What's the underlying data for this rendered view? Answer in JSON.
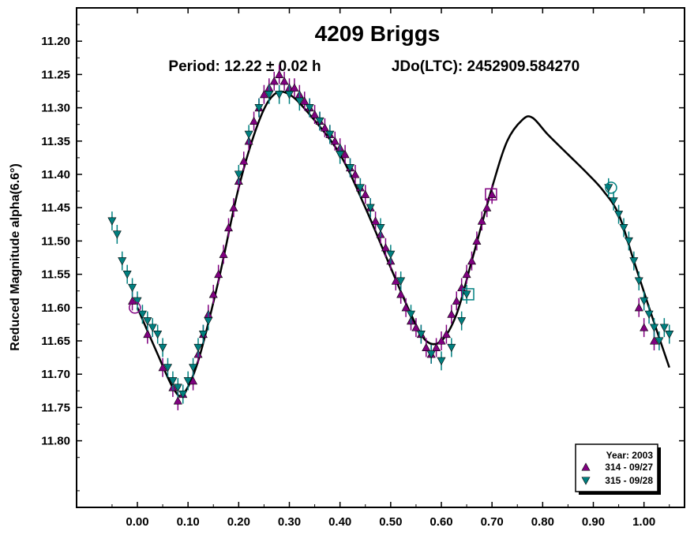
{
  "chart_data": {
    "type": "scatter",
    "title": "4209 Briggs",
    "subtitle_period": "Period: 12.22 ± 0.02 h",
    "subtitle_epoch": "JDo(LTC): 2452909.584270",
    "xlabel": "",
    "ylabel": "Reduced Magnitude alpha(6.6°)",
    "xlim": [
      -0.12,
      1.08
    ],
    "ylim": [
      11.15,
      11.9
    ],
    "y_inverted": true,
    "x_ticks": [
      0.0,
      0.1,
      0.2,
      0.3,
      0.4,
      0.5,
      0.6,
      0.7,
      0.8,
      0.9,
      1.0
    ],
    "x_tick_labels": [
      "0.00",
      "0.10",
      "0.20",
      "0.30",
      "0.40",
      "0.50",
      "0.60",
      "0.70",
      "0.80",
      "0.90",
      "1.00"
    ],
    "y_ticks": [
      11.2,
      11.25,
      11.3,
      11.35,
      11.4,
      11.45,
      11.5,
      11.55,
      11.6,
      11.65,
      11.7,
      11.75,
      11.8
    ],
    "y_tick_labels": [
      "11.20",
      "11.25",
      "11.30",
      "11.35",
      "11.40",
      "11.45",
      "11.50",
      "11.55",
      "11.60",
      "11.65",
      "11.70",
      "11.75",
      "11.80"
    ],
    "legend": {
      "title": "Year: 2003",
      "placement": "bottom-right",
      "entries": [
        {
          "label": "314 - 09/27",
          "marker": "triangle-up",
          "color": "#800080"
        },
        {
          "label": "315 - 09/28",
          "marker": "triangle-down",
          "color": "#008080"
        }
      ]
    },
    "fit_curve": {
      "color": "#000000",
      "x": [
        0.0,
        0.04,
        0.07,
        0.09,
        0.12,
        0.16,
        0.2,
        0.24,
        0.27,
        0.3,
        0.34,
        0.4,
        0.45,
        0.5,
        0.54,
        0.57,
        0.6,
        0.63,
        0.66,
        0.7,
        0.73,
        0.76,
        0.78,
        0.81,
        0.85,
        0.89,
        0.92,
        0.95,
        0.98,
        1.01,
        1.05
      ],
      "y": [
        11.6,
        11.67,
        11.72,
        11.73,
        11.68,
        11.56,
        11.42,
        11.32,
        11.28,
        11.28,
        11.31,
        11.37,
        11.45,
        11.54,
        11.61,
        11.65,
        11.65,
        11.61,
        11.53,
        11.42,
        11.35,
        11.318,
        11.315,
        11.34,
        11.37,
        11.4,
        11.425,
        11.46,
        11.53,
        11.6,
        11.69
      ]
    },
    "series": [
      {
        "name": "314 - 09/27",
        "marker": "triangle-up",
        "color": "#800080",
        "x": [
          -0.01,
          0.02,
          0.05,
          0.07,
          0.08,
          0.09,
          0.11,
          0.12,
          0.13,
          0.14,
          0.15,
          0.16,
          0.17,
          0.18,
          0.19,
          0.2,
          0.21,
          0.22,
          0.23,
          0.24,
          0.25,
          0.26,
          0.27,
          0.28,
          0.29,
          0.3,
          0.31,
          0.32,
          0.33,
          0.34,
          0.35,
          0.36,
          0.37,
          0.38,
          0.39,
          0.4,
          0.41,
          0.42,
          0.43,
          0.44,
          0.45,
          0.46,
          0.47,
          0.48,
          0.49,
          0.5,
          0.51,
          0.52,
          0.53,
          0.54,
          0.55,
          0.56,
          0.57,
          0.58,
          0.59,
          0.6,
          0.61,
          0.62,
          0.63,
          0.64,
          0.65,
          0.66,
          0.67,
          0.68,
          0.69,
          0.7,
          0.99,
          1.0,
          1.02
        ],
        "y": [
          11.59,
          11.64,
          11.69,
          11.72,
          11.74,
          11.73,
          11.71,
          11.67,
          11.64,
          11.61,
          11.58,
          11.55,
          11.52,
          11.48,
          11.45,
          11.41,
          11.38,
          11.35,
          11.32,
          11.3,
          11.28,
          11.27,
          11.26,
          11.25,
          11.26,
          11.27,
          11.27,
          11.28,
          11.29,
          11.3,
          11.31,
          11.32,
          11.33,
          11.34,
          11.35,
          11.36,
          11.37,
          11.39,
          11.4,
          11.42,
          11.43,
          11.45,
          11.47,
          11.49,
          11.51,
          11.53,
          11.56,
          11.58,
          11.6,
          11.62,
          11.63,
          11.64,
          11.66,
          11.67,
          11.66,
          11.65,
          11.64,
          11.61,
          11.59,
          11.57,
          11.55,
          11.53,
          11.5,
          11.47,
          11.45,
          11.43,
          11.6,
          11.63,
          11.65
        ]
      },
      {
        "name": "315 - 09/28",
        "marker": "triangle-down",
        "color": "#008080",
        "x": [
          -0.05,
          -0.04,
          -0.03,
          -0.02,
          -0.01,
          0.0,
          0.01,
          0.02,
          0.03,
          0.04,
          0.05,
          0.06,
          0.07,
          0.08,
          0.09,
          0.1,
          0.11,
          0.12,
          0.13,
          0.14,
          0.2,
          0.22,
          0.24,
          0.26,
          0.28,
          0.3,
          0.32,
          0.34,
          0.36,
          0.38,
          0.4,
          0.42,
          0.44,
          0.46,
          0.48,
          0.5,
          0.52,
          0.54,
          0.56,
          0.58,
          0.6,
          0.62,
          0.64,
          0.65,
          0.93,
          0.94,
          0.95,
          0.96,
          0.97,
          0.98,
          0.99,
          1.0,
          1.01,
          1.02,
          1.03,
          1.04,
          1.05
        ],
        "y": [
          11.47,
          11.49,
          11.53,
          11.55,
          11.57,
          11.59,
          11.61,
          11.62,
          11.63,
          11.64,
          11.66,
          11.69,
          11.71,
          11.72,
          11.73,
          11.71,
          11.69,
          11.66,
          11.64,
          11.62,
          11.4,
          11.34,
          11.3,
          11.28,
          11.28,
          11.28,
          11.29,
          11.3,
          11.32,
          11.34,
          11.37,
          11.39,
          11.42,
          11.45,
          11.48,
          11.52,
          11.56,
          11.61,
          11.64,
          11.67,
          11.68,
          11.66,
          11.62,
          11.58,
          11.42,
          11.44,
          11.46,
          11.48,
          11.5,
          11.53,
          11.56,
          11.59,
          11.61,
          11.63,
          11.65,
          11.63,
          11.64
        ]
      }
    ],
    "special_markers": [
      {
        "shape": "circle",
        "x": -0.005,
        "y": 11.6,
        "color": "#800080"
      },
      {
        "shape": "square",
        "x": 0.698,
        "y": 11.43,
        "color": "#800080"
      },
      {
        "shape": "square",
        "x": 0.653,
        "y": 11.58,
        "color": "#008080"
      },
      {
        "shape": "circle",
        "x": 0.935,
        "y": 11.42,
        "color": "#008080"
      }
    ]
  }
}
